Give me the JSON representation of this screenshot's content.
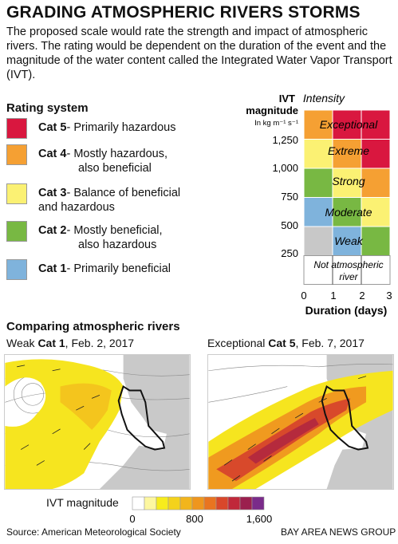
{
  "title": "GRADING ATMOSPHERIC RIVERS STORMS",
  "intro": "The proposed scale would rate the strength and impact of atmospheric rivers. The rating would be dependent on the duration of the event and the magnitude of the water content called the Integrated Water Vapor Transport (IVT).",
  "rating_system": {
    "heading": "Rating system",
    "items": [
      {
        "cat": "Cat 5",
        "desc": "- Primarily hazardous",
        "desc2": "",
        "color": "#d9173f"
      },
      {
        "cat": "Cat 4",
        "desc": "- Mostly hazardous,",
        "desc2": "also beneficial",
        "color": "#f5a033"
      },
      {
        "cat": "Cat 3",
        "desc": "- Balance of beneficial",
        "desc2": "and hazardous",
        "color": "#fbf173"
      },
      {
        "cat": "Cat 2",
        "desc": "- Mostly beneficial,",
        "desc2": "also hazardous",
        "color": "#78b843"
      },
      {
        "cat": "Cat 1",
        "desc": "- Primarily beneficial",
        "desc2": "",
        "color": "#7fb3dc"
      }
    ]
  },
  "intensity_chart": {
    "title": "Intensity",
    "y_label_1": "IVT",
    "y_label_2": "magnitude",
    "y_units": "In kg m⁻¹ s⁻¹",
    "y_ticks": [
      "1,250",
      "1,000",
      "750",
      "500",
      "250"
    ],
    "x_ticks": [
      "0",
      "1",
      "2",
      "3"
    ],
    "x_label": "Duration (days)",
    "bands": [
      "Exceptional",
      "Extreme",
      "Strong",
      "Moderate",
      "Weak"
    ],
    "bottom_label_1": "Not atmospheric",
    "bottom_label_2": "river",
    "grid_colors": [
      [
        "#f5a033",
        "#d9173f",
        "#d9173f"
      ],
      [
        "#fbf173",
        "#f5a033",
        "#d9173f"
      ],
      [
        "#78b843",
        "#fbf173",
        "#f5a033"
      ],
      [
        "#7fb3dc",
        "#78b843",
        "#fbf173"
      ],
      [
        "#c8c8c8",
        "#7fb3dc",
        "#78b843"
      ]
    ]
  },
  "comparing": {
    "heading": "Comparing atmospheric rivers",
    "map1": {
      "prefix": "Weak ",
      "cat": "Cat 1",
      "date": ", Feb. 2, 2017"
    },
    "map2": {
      "prefix": "Exceptional ",
      "cat": "Cat 5",
      "date": ", Feb. 7, 2017"
    }
  },
  "legend": {
    "label": "IVT magnitude",
    "ticks": [
      "0",
      "800",
      "1,600"
    ],
    "colors": [
      "#ffffff",
      "#fdf7a0",
      "#f7ec1c",
      "#f4d21c",
      "#f2b51c",
      "#ef961e",
      "#e97420",
      "#d9472a",
      "#c0283a",
      "#9b1f4e",
      "#7a2b8a"
    ]
  },
  "source": "Source: American Meteorological Society",
  "credit": "BAY AREA NEWS GROUP"
}
